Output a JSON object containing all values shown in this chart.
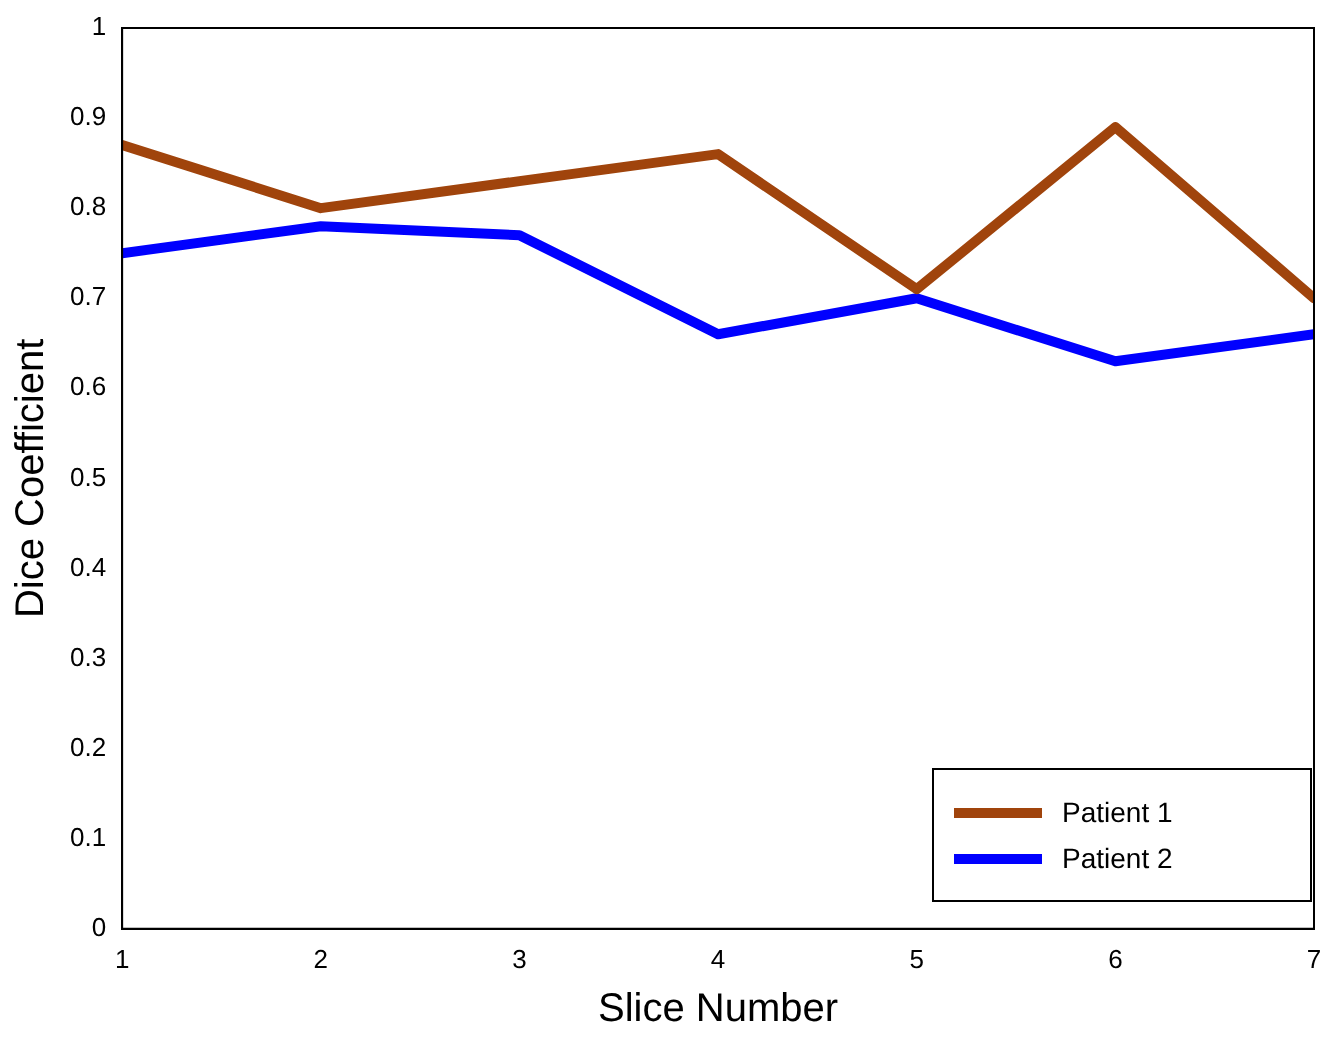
{
  "chart_data": {
    "type": "line",
    "xlabel": "Slice Number",
    "ylabel": "Dice Coefficient",
    "x": [
      1,
      2,
      3,
      4,
      5,
      6,
      7
    ],
    "series": [
      {
        "name": "Patient 1",
        "color": "#a0440c",
        "values": [
          0.87,
          0.8,
          0.83,
          0.86,
          0.71,
          0.89,
          0.7
        ]
      },
      {
        "name": "Patient 2",
        "color": "#0000ff",
        "values": [
          0.75,
          0.78,
          0.77,
          0.66,
          0.7,
          0.63,
          0.66
        ]
      }
    ],
    "xlim": [
      1,
      7
    ],
    "xticks": [
      1,
      2,
      3,
      4,
      5,
      6,
      7
    ],
    "ylim": [
      0,
      1
    ],
    "yticks": [
      0,
      0.1,
      0.2,
      0.3,
      0.4,
      0.5,
      0.6,
      0.7,
      0.8,
      0.9,
      1
    ],
    "legend": "bottom right",
    "grid": false,
    "marker": "none",
    "line_style": "solid"
  }
}
